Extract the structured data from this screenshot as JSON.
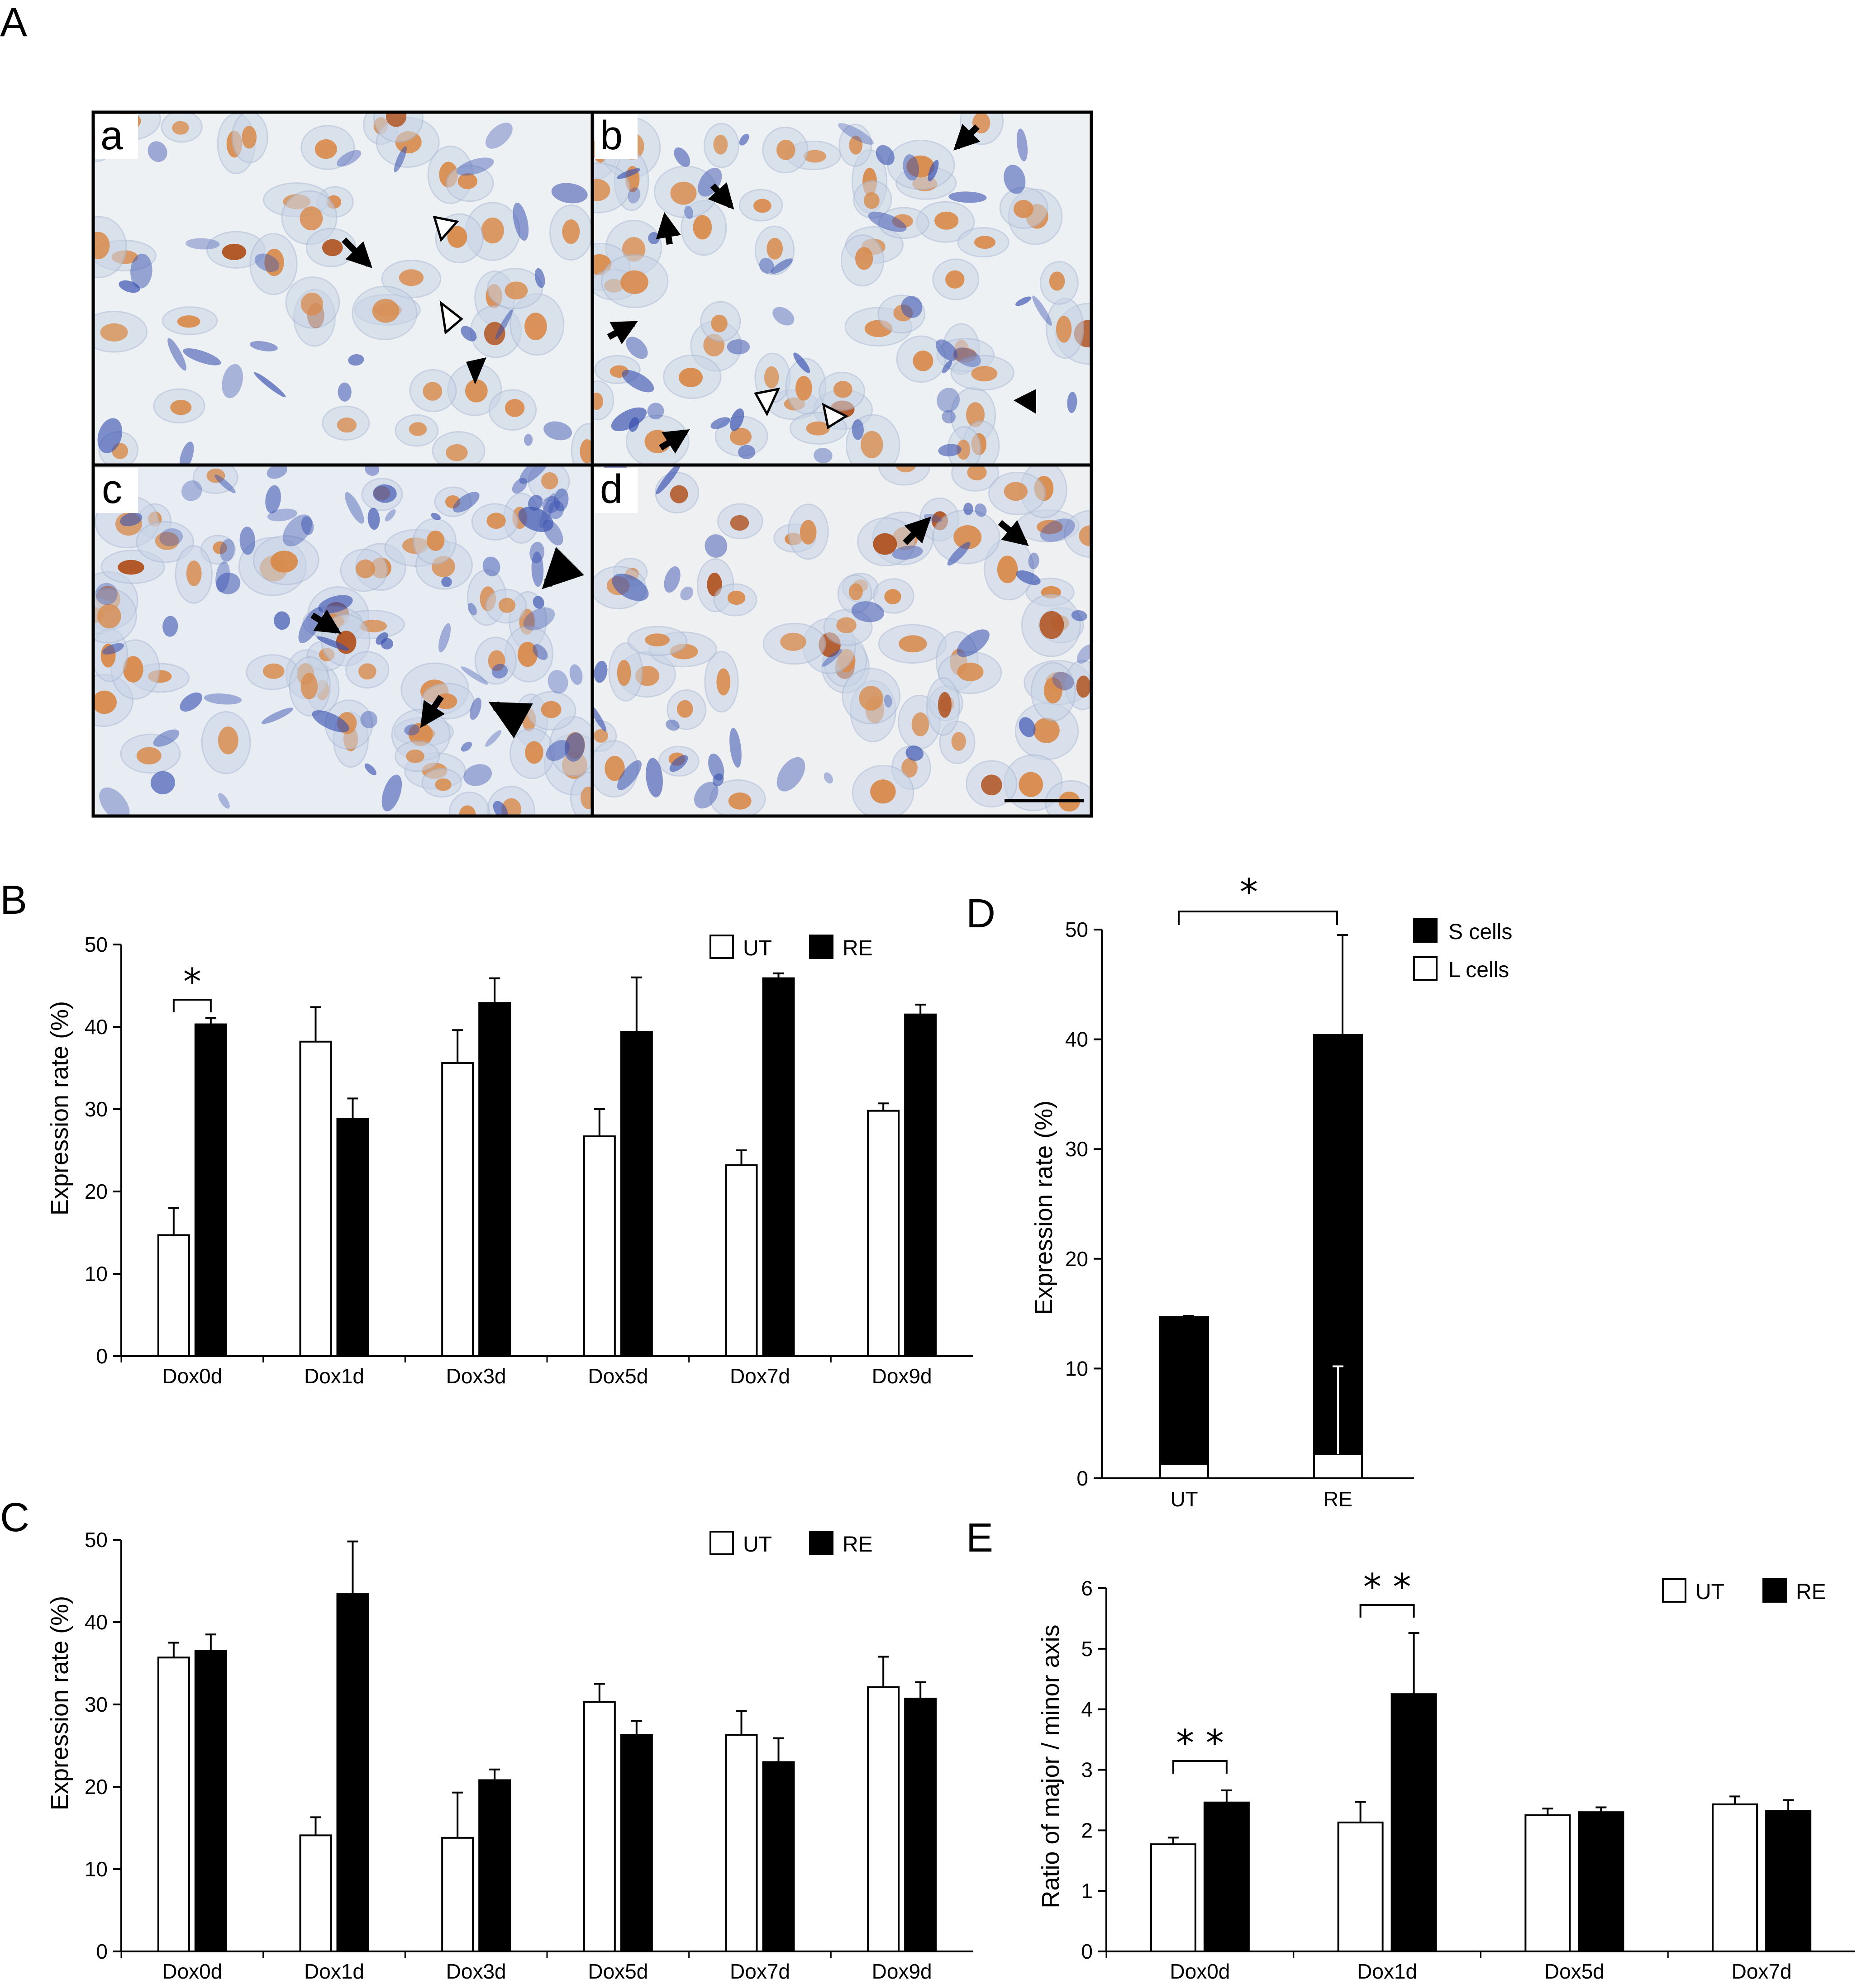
{
  "panels": {
    "A": "A",
    "B": "B",
    "C": "C",
    "D": "D",
    "E": "E"
  },
  "micro": {
    "subpanels": [
      "a",
      "b",
      "c",
      "d"
    ],
    "colors": {
      "background": "#eef1f3",
      "cytoplasm": "#c8d4e6",
      "nucleus": "#d98a4a",
      "strong_nucleus": "#b0501c",
      "stain": "#3a52b0",
      "frame": "#000000"
    }
  },
  "chart_data": [
    {
      "id": "B",
      "type": "bar",
      "categories": [
        "Dox0d",
        "Dox1d",
        "Dox3d",
        "Dox5d",
        "Dox7d",
        "Dox9d"
      ],
      "series": [
        {
          "name": "UT",
          "values": [
            14.7,
            38.2,
            35.6,
            26.7,
            23.2,
            29.8
          ],
          "errors": [
            3.3,
            4.2,
            4.0,
            3.3,
            1.8,
            0.9
          ],
          "color": "#ffffff"
        },
        {
          "name": "RE",
          "values": [
            40.3,
            28.8,
            42.9,
            39.4,
            45.9,
            41.5
          ],
          "errors": [
            0.8,
            2.5,
            3.0,
            6.6,
            0.6,
            1.2
          ],
          "color": "#000000"
        }
      ],
      "ylabel": "Expression rate (%)",
      "ylim": [
        0,
        50
      ],
      "yticks": [
        0,
        10,
        20,
        30,
        40,
        50
      ],
      "legend": "top-right",
      "significance": [
        {
          "category": "Dox0d",
          "label": "*"
        }
      ]
    },
    {
      "id": "C",
      "type": "bar",
      "categories": [
        "Dox0d",
        "Dox1d",
        "Dox3d",
        "Dox5d",
        "Dox7d",
        "Dox9d"
      ],
      "series": [
        {
          "name": "UT",
          "values": [
            35.7,
            14.1,
            13.8,
            30.3,
            26.3,
            32.1
          ],
          "errors": [
            1.8,
            2.2,
            5.5,
            2.2,
            2.9,
            3.7
          ],
          "color": "#ffffff"
        },
        {
          "name": "RE",
          "values": [
            36.5,
            43.4,
            20.8,
            26.3,
            23.0,
            30.7
          ],
          "errors": [
            2.0,
            6.4,
            1.3,
            1.7,
            2.9,
            2.0
          ],
          "color": "#000000"
        }
      ],
      "ylabel": "Expression rate (%)",
      "ylim": [
        0,
        50
      ],
      "yticks": [
        0,
        10,
        20,
        30,
        40,
        50
      ],
      "legend": "top-right"
    },
    {
      "id": "D",
      "type": "bar",
      "stacked": true,
      "categories": [
        "UT",
        "RE"
      ],
      "series": [
        {
          "name": "S cells",
          "values": [
            13.4,
            38.2
          ],
          "color": "#000000"
        },
        {
          "name": "L cells",
          "values": [
            1.3,
            2.2
          ],
          "color": "#ffffff"
        }
      ],
      "totals": [
        14.7,
        40.4
      ],
      "total_errors": [
        0.1,
        9.1
      ],
      "lower_errors": [
        0.1,
        8.0
      ],
      "ylabel": "Expression rate (%)",
      "ylim": [
        0,
        50
      ],
      "yticks": [
        0,
        10,
        20,
        30,
        40,
        50
      ],
      "legend": "top-right",
      "significance": [
        {
          "from": "UT",
          "to": "RE",
          "label": "*"
        }
      ]
    },
    {
      "id": "E",
      "type": "bar",
      "categories": [
        "Dox0d",
        "Dox1d",
        "Dox5d",
        "Dox7d"
      ],
      "series": [
        {
          "name": "UT",
          "values": [
            1.77,
            2.13,
            2.25,
            2.43
          ],
          "errors": [
            0.11,
            0.34,
            0.11,
            0.13
          ],
          "color": "#ffffff"
        },
        {
          "name": "RE",
          "values": [
            2.46,
            4.25,
            2.3,
            2.32
          ],
          "errors": [
            0.2,
            1.01,
            0.08,
            0.18
          ],
          "color": "#000000"
        }
      ],
      "ylabel": "Ratio of major / minor axis",
      "ylim": [
        0,
        6
      ],
      "yticks": [
        0,
        1,
        2,
        3,
        4,
        5,
        6
      ],
      "legend": "top-right",
      "significance": [
        {
          "category": "Dox0d",
          "label": "* *"
        },
        {
          "category": "Dox1d",
          "label": "* *"
        }
      ]
    }
  ]
}
